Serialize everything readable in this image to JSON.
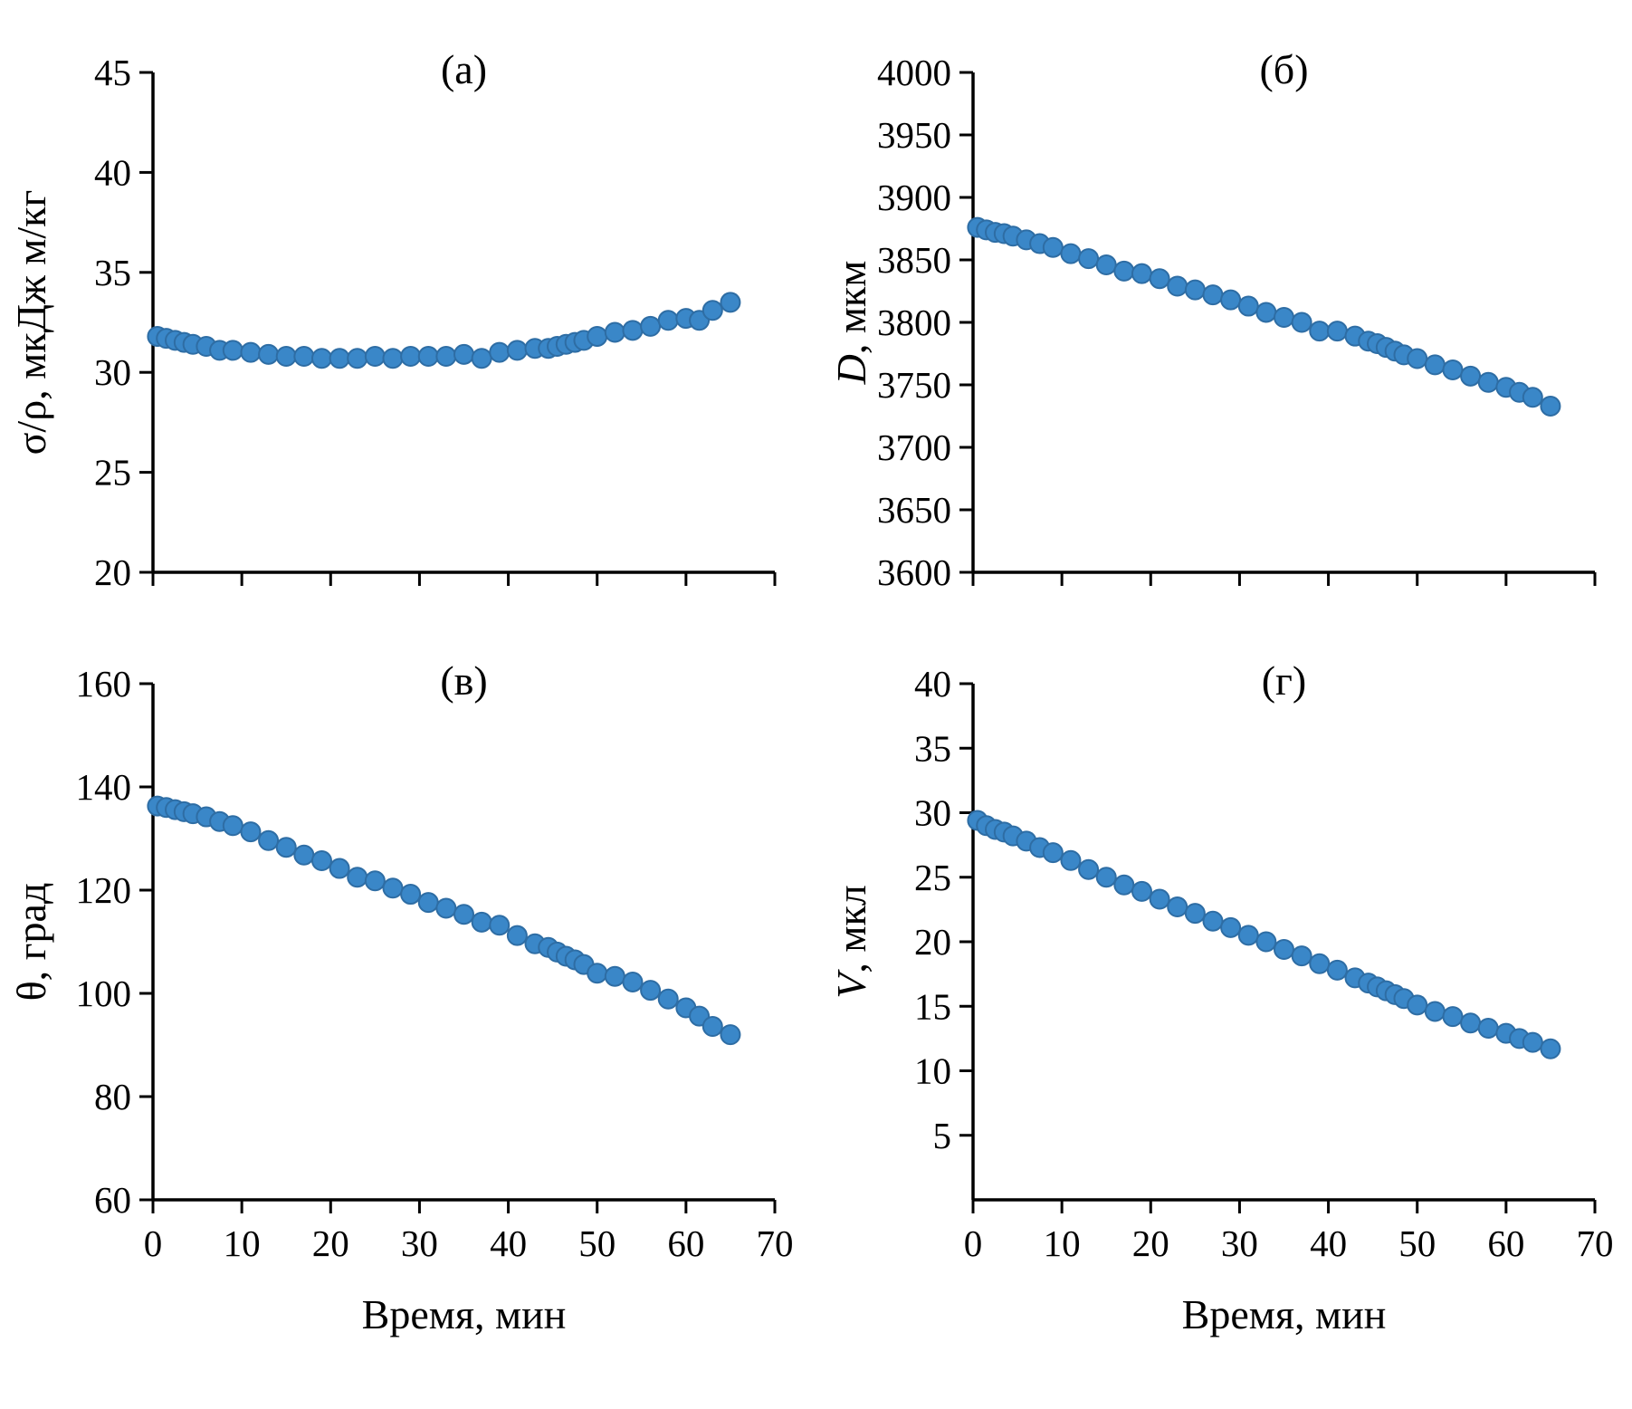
{
  "figure": {
    "background": "#ffffff",
    "axis_color": "#000000",
    "marker_color": "#3a87c8",
    "marker_edge": "#2e6da4"
  },
  "chart_data": [
    {
      "id": "a",
      "type": "scatter",
      "title": "(а)",
      "ylabel_parts": [
        {
          "text": "σ/ρ, мкДж м/кг",
          "italic": false
        }
      ],
      "xlabel": "Время, мин",
      "show_xlabel": false,
      "show_xticklabels": false,
      "xlim": [
        0,
        70
      ],
      "xticks": [
        0,
        10,
        20,
        30,
        40,
        50,
        60,
        70
      ],
      "ylim": [
        20,
        45
      ],
      "yticks": [
        20,
        25,
        30,
        35,
        40,
        45
      ],
      "x": [
        0.5,
        1.5,
        2.5,
        3.5,
        4.5,
        6,
        7.5,
        9,
        11,
        13,
        15,
        17,
        19,
        21,
        23,
        25,
        27,
        29,
        31,
        33,
        35,
        37,
        39,
        41,
        43,
        44.5,
        45.5,
        46.5,
        47.5,
        48.5,
        50,
        52,
        54,
        56,
        58,
        60,
        61.5,
        63,
        65
      ],
      "y": [
        31.8,
        31.7,
        31.6,
        31.5,
        31.4,
        31.3,
        31.1,
        31.1,
        31.0,
        30.9,
        30.8,
        30.8,
        30.7,
        30.7,
        30.7,
        30.8,
        30.7,
        30.8,
        30.8,
        30.8,
        30.9,
        30.7,
        31.0,
        31.1,
        31.2,
        31.2,
        31.3,
        31.4,
        31.5,
        31.6,
        31.8,
        32.0,
        32.1,
        32.3,
        32.6,
        32.7,
        32.6,
        33.1,
        33.5
      ]
    },
    {
      "id": "b",
      "type": "scatter",
      "title": "(б)",
      "ylabel_parts": [
        {
          "text": "D",
          "italic": true
        },
        {
          "text": ", мкм",
          "italic": false
        }
      ],
      "xlabel": "Время, мин",
      "show_xlabel": false,
      "show_xticklabels": false,
      "xlim": [
        0,
        70
      ],
      "xticks": [
        0,
        10,
        20,
        30,
        40,
        50,
        60,
        70
      ],
      "ylim": [
        3600,
        4000
      ],
      "yticks": [
        3600,
        3650,
        3700,
        3750,
        3800,
        3850,
        3900,
        3950,
        4000
      ],
      "x": [
        0.5,
        1.5,
        2.5,
        3.5,
        4.5,
        6,
        7.5,
        9,
        11,
        13,
        15,
        17,
        19,
        21,
        23,
        25,
        27,
        29,
        31,
        33,
        35,
        37,
        39,
        41,
        43,
        44.5,
        45.5,
        46.5,
        47.5,
        48.5,
        50,
        52,
        54,
        56,
        58,
        60,
        61.5,
        63,
        65
      ],
      "y": [
        3876,
        3874,
        3872,
        3871,
        3869,
        3866,
        3863,
        3860,
        3855,
        3851,
        3846,
        3841,
        3839,
        3835,
        3829,
        3826,
        3822,
        3818,
        3813,
        3808,
        3804,
        3800,
        3793,
        3793,
        3789,
        3785,
        3783,
        3780,
        3777,
        3774,
        3771,
        3766,
        3762,
        3757,
        3752,
        3748,
        3744,
        3740,
        3733
      ]
    },
    {
      "id": "v",
      "type": "scatter",
      "title": "(в)",
      "ylabel_parts": [
        {
          "text": "θ, град",
          "italic": false
        }
      ],
      "xlabel": "Время, мин",
      "show_xlabel": true,
      "show_xticklabels": true,
      "xlim": [
        0,
        70
      ],
      "xticks": [
        0,
        10,
        20,
        30,
        40,
        50,
        60,
        70
      ],
      "ylim": [
        60,
        160
      ],
      "yticks": [
        60,
        80,
        100,
        120,
        140,
        160
      ],
      "x": [
        0.5,
        1.5,
        2.5,
        3.5,
        4.5,
        6,
        7.5,
        9,
        11,
        13,
        15,
        17,
        19,
        21,
        23,
        25,
        27,
        29,
        31,
        33,
        35,
        37,
        39,
        41,
        43,
        44.5,
        45.5,
        46.5,
        47.5,
        48.5,
        50,
        52,
        54,
        56,
        58,
        60,
        61.5,
        63,
        65
      ],
      "y": [
        136.3,
        136.0,
        135.6,
        135.2,
        134.8,
        134.2,
        133.3,
        132.5,
        131.3,
        129.6,
        128.3,
        126.8,
        125.7,
        124.2,
        122.5,
        121.8,
        120.4,
        119.2,
        117.6,
        116.5,
        115.3,
        113.8,
        113.2,
        111.2,
        109.6,
        108.9,
        108.0,
        107.2,
        106.5,
        105.6,
        103.9,
        103.3,
        102.2,
        100.6,
        98.9,
        97.2,
        95.6,
        93.6,
        92.0
      ]
    },
    {
      "id": "g",
      "type": "scatter",
      "title": "(г)",
      "ylabel_parts": [
        {
          "text": "V",
          "italic": true
        },
        {
          "text": ", мкл",
          "italic": false
        }
      ],
      "xlabel": "Время, мин",
      "show_xlabel": true,
      "show_xticklabels": true,
      "xlim": [
        0,
        70
      ],
      "xticks": [
        0,
        10,
        20,
        30,
        40,
        50,
        60,
        70
      ],
      "ylim": [
        0,
        40
      ],
      "yticks": [
        5,
        10,
        15,
        20,
        25,
        30,
        35,
        40
      ],
      "x": [
        0.5,
        1.5,
        2.5,
        3.5,
        4.5,
        6,
        7.5,
        9,
        11,
        13,
        15,
        17,
        19,
        21,
        23,
        25,
        27,
        29,
        31,
        33,
        35,
        37,
        39,
        41,
        43,
        44.5,
        45.5,
        46.5,
        47.5,
        48.5,
        50,
        52,
        54,
        56,
        58,
        60,
        61.5,
        63,
        65
      ],
      "y": [
        29.4,
        29.0,
        28.7,
        28.5,
        28.2,
        27.8,
        27.3,
        26.9,
        26.3,
        25.6,
        25.0,
        24.4,
        23.9,
        23.3,
        22.7,
        22.2,
        21.6,
        21.1,
        20.5,
        20.0,
        19.4,
        18.9,
        18.3,
        17.8,
        17.2,
        16.8,
        16.5,
        16.2,
        15.9,
        15.6,
        15.1,
        14.6,
        14.2,
        13.7,
        13.3,
        12.9,
        12.5,
        12.2,
        11.7
      ]
    }
  ]
}
